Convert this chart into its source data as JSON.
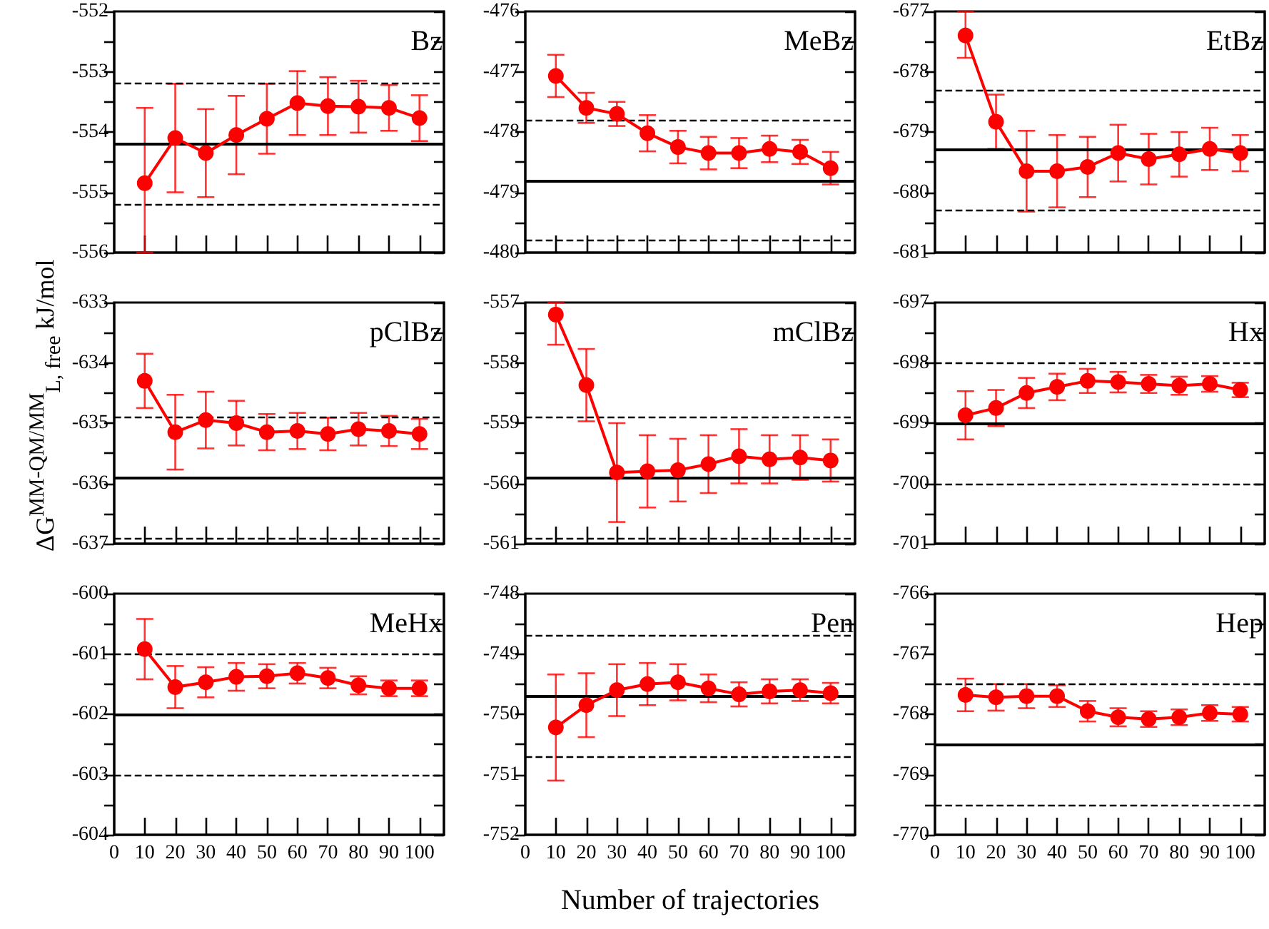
{
  "chart_data": [
    {
      "type": "line",
      "title": "Bz",
      "x": [
        10,
        20,
        30,
        40,
        50,
        60,
        70,
        80,
        90,
        100
      ],
      "xlim": [
        0,
        108
      ],
      "xticks": [
        0,
        10,
        20,
        30,
        40,
        50,
        60,
        70,
        80,
        90,
        100
      ],
      "ylim": [
        -556,
        -552
      ],
      "yticks": [
        -556,
        {
          "value": -555.5,
          "label": null
        },
        -555,
        {
          "value": -554.5,
          "label": null
        },
        -554,
        {
          "value": -553.5,
          "label": null
        },
        -553,
        {
          "value": -552.5,
          "label": null
        },
        -552
      ],
      "tick_labels": "y",
      "marker": "circle",
      "series": [
        {
          "color": "#ff0000",
          "values": [
            -554.85,
            -554.1,
            -554.35,
            -554.05,
            -553.78,
            -553.52,
            -553.57,
            -553.58,
            -553.6,
            -553.77
          ],
          "errors": [
            [
              -556,
              -553.6
            ],
            0.9,
            0.73,
            0.65,
            0.58,
            0.53,
            0.48,
            0.43,
            0.38,
            0.38
          ]
        }
      ],
      "ref_lines": [
        {
          "axis": "y",
          "value": -554.2,
          "line_style": "solid"
        },
        {
          "axis": "y",
          "value": -553.2,
          "line_style": "dashed"
        },
        {
          "axis": "y",
          "value": -555.2,
          "line_style": "dashed"
        }
      ]
    },
    {
      "type": "line",
      "title": "MeBz",
      "x": [
        10,
        20,
        30,
        40,
        50,
        60,
        70,
        80,
        90,
        100
      ],
      "xlim": [
        0,
        108
      ],
      "xticks": [
        0,
        10,
        20,
        30,
        40,
        50,
        60,
        70,
        80,
        90,
        100
      ],
      "ylim": [
        -480,
        -476
      ],
      "yticks": [
        -480,
        {
          "value": -479.5,
          "label": null
        },
        -479,
        {
          "value": -478.5,
          "label": null
        },
        -478,
        {
          "value": -477.5,
          "label": null
        },
        -477,
        {
          "value": -476.5,
          "label": null
        },
        -476
      ],
      "tick_labels": "y",
      "marker": "circle",
      "series": [
        {
          "color": "#ff0000",
          "values": [
            -477.07,
            -477.6,
            -477.7,
            -478.02,
            -478.25,
            -478.35,
            -478.35,
            -478.28,
            -478.33,
            -478.6
          ],
          "errors": [
            0.35,
            0.25,
            0.2,
            0.3,
            0.27,
            0.27,
            0.25,
            0.22,
            0.2,
            0.27
          ]
        }
      ],
      "ref_lines": [
        {
          "axis": "y",
          "value": -478.8,
          "line_style": "solid"
        },
        {
          "axis": "y",
          "value": -477.8,
          "line_style": "dashed"
        },
        {
          "axis": "y",
          "value": -479.8,
          "line_style": "dashed"
        }
      ]
    },
    {
      "type": "line",
      "title": "EtBz",
      "x": [
        10,
        20,
        30,
        40,
        50,
        60,
        70,
        80,
        90,
        100
      ],
      "xlim": [
        0,
        108
      ],
      "xticks": [
        0,
        10,
        20,
        30,
        40,
        50,
        60,
        70,
        80,
        90,
        100
      ],
      "ylim": [
        -681,
        -677
      ],
      "yticks": [
        -681,
        {
          "value": -680.5,
          "label": null
        },
        -680,
        {
          "value": -679.5,
          "label": null
        },
        -679,
        {
          "value": -678.5,
          "label": null
        },
        -678,
        {
          "value": -677.5,
          "label": null
        },
        -677
      ],
      "tick_labels": "y",
      "marker": "circle",
      "series": [
        {
          "color": "#ff0000",
          "values": [
            -677.4,
            -678.83,
            -679.65,
            -679.65,
            -679.58,
            -679.35,
            -679.45,
            -679.37,
            -679.28,
            -679.35
          ],
          "errors": [
            [
              -677.77,
              -677
            ],
            0.45,
            0.67,
            0.6,
            0.5,
            0.47,
            0.42,
            0.37,
            0.35,
            0.3
          ]
        }
      ],
      "ref_lines": [
        {
          "axis": "y",
          "value": -679.3,
          "line_style": "solid"
        },
        {
          "axis": "y",
          "value": -678.3,
          "line_style": "dashed"
        },
        {
          "axis": "y",
          "value": -680.3,
          "line_style": "dashed"
        }
      ]
    },
    {
      "type": "line",
      "title": "pClBz",
      "ylabel": "ΔG$^{MM-QM/MM}$$_{L, free}$ kJ/mol",
      "x": [
        10,
        20,
        30,
        40,
        50,
        60,
        70,
        80,
        90,
        100
      ],
      "xlim": [
        0,
        108
      ],
      "xticks": [
        0,
        10,
        20,
        30,
        40,
        50,
        60,
        70,
        80,
        90,
        100
      ],
      "ylim": [
        -637,
        -633
      ],
      "yticks": [
        -637,
        {
          "value": -636.5,
          "label": null
        },
        -636,
        {
          "value": -635.5,
          "label": null
        },
        -635,
        {
          "value": -634.5,
          "label": null
        },
        -634,
        {
          "value": -633.5,
          "label": null
        },
        -633
      ],
      "tick_labels": "y",
      "marker": "circle",
      "series": [
        {
          "color": "#ff0000",
          "values": [
            -634.3,
            -635.15,
            -634.95,
            -635.0,
            -635.15,
            -635.13,
            -635.18,
            -635.1,
            -635.13,
            -635.18
          ],
          "errors": [
            0.45,
            0.62,
            0.47,
            0.37,
            0.3,
            0.3,
            0.27,
            0.27,
            0.25,
            0.25
          ]
        }
      ],
      "ref_lines": [
        {
          "axis": "y",
          "value": -635.9,
          "line_style": "solid"
        },
        {
          "axis": "y",
          "value": -634.9,
          "line_style": "dashed"
        },
        {
          "axis": "y",
          "value": -636.9,
          "line_style": "dashed"
        }
      ]
    },
    {
      "type": "line",
      "title": "mClBz",
      "x": [
        10,
        20,
        30,
        40,
        50,
        60,
        70,
        80,
        90,
        100
      ],
      "xlim": [
        0,
        108
      ],
      "xticks": [
        0,
        10,
        20,
        30,
        40,
        50,
        60,
        70,
        80,
        90,
        100
      ],
      "ylim": [
        -561,
        -557
      ],
      "yticks": [
        -561,
        {
          "value": -560.5,
          "label": null
        },
        -560,
        {
          "value": -559.5,
          "label": null
        },
        -559,
        {
          "value": -558.5,
          "label": null
        },
        -558,
        {
          "value": -557.5,
          "label": null
        },
        -557
      ],
      "tick_labels": "y",
      "marker": "circle",
      "series": [
        {
          "color": "#ff0000",
          "values": [
            -557.2,
            -558.37,
            -559.82,
            -559.8,
            -559.78,
            -559.68,
            -559.55,
            -559.6,
            -559.57,
            -559.62
          ],
          "errors": [
            [
              -557.7,
              -557
            ],
            0.6,
            0.82,
            0.6,
            0.52,
            0.48,
            0.45,
            0.4,
            0.37,
            0.35
          ]
        }
      ],
      "ref_lines": [
        {
          "axis": "y",
          "value": -559.9,
          "line_style": "solid"
        },
        {
          "axis": "y",
          "value": -558.9,
          "line_style": "dashed"
        },
        {
          "axis": "y",
          "value": -560.9,
          "line_style": "dashed"
        }
      ]
    },
    {
      "type": "line",
      "title": "Hx",
      "x": [
        10,
        20,
        30,
        40,
        50,
        60,
        70,
        80,
        90,
        100
      ],
      "xlim": [
        0,
        108
      ],
      "xticks": [
        0,
        10,
        20,
        30,
        40,
        50,
        60,
        70,
        80,
        90,
        100
      ],
      "ylim": [
        -701,
        -697
      ],
      "yticks": [
        -701,
        {
          "value": -700.5,
          "label": null
        },
        -700,
        {
          "value": -699.5,
          "label": null
        },
        -699,
        {
          "value": -698.5,
          "label": null
        },
        -698,
        {
          "value": -697.5,
          "label": null
        },
        -697
      ],
      "tick_labels": "y",
      "marker": "circle",
      "series": [
        {
          "color": "#ff0000",
          "values": [
            -698.87,
            -698.75,
            -698.5,
            -698.4,
            -698.3,
            -698.32,
            -698.35,
            -698.38,
            -698.35,
            -698.45
          ],
          "errors": [
            0.4,
            0.3,
            0.25,
            0.22,
            0.2,
            0.17,
            0.15,
            0.15,
            0.13,
            0.12
          ]
        }
      ],
      "ref_lines": [
        {
          "axis": "y",
          "value": -699,
          "line_style": "solid"
        },
        {
          "axis": "y",
          "value": -698,
          "line_style": "dashed"
        },
        {
          "axis": "y",
          "value": -700,
          "line_style": "dashed"
        }
      ]
    },
    {
      "type": "line",
      "title": "MeHx",
      "x": [
        10,
        20,
        30,
        40,
        50,
        60,
        70,
        80,
        90,
        100
      ],
      "xlim": [
        0,
        108
      ],
      "xticks": [
        0,
        10,
        20,
        30,
        40,
        50,
        60,
        70,
        80,
        90,
        100
      ],
      "ylim": [
        -604,
        -600
      ],
      "yticks": [
        -604,
        {
          "value": -603.5,
          "label": null
        },
        -603,
        {
          "value": -602.5,
          "label": null
        },
        -602,
        {
          "value": -601.5,
          "label": null
        },
        -601,
        {
          "value": -600.5,
          "label": null
        },
        -600
      ],
      "marker": "circle",
      "series": [
        {
          "color": "#ff0000",
          "values": [
            -600.92,
            -601.55,
            -601.47,
            -601.38,
            -601.37,
            -601.32,
            -601.4,
            -601.52,
            -601.57,
            -601.57
          ],
          "errors": [
            0.5,
            0.35,
            0.25,
            0.23,
            0.2,
            0.17,
            0.17,
            0.15,
            0.13,
            0.13
          ]
        }
      ],
      "ref_lines": [
        {
          "axis": "y",
          "value": -602,
          "line_style": "solid"
        },
        {
          "axis": "y",
          "value": -601,
          "line_style": "dashed"
        },
        {
          "axis": "y",
          "value": -603,
          "line_style": "dashed"
        }
      ]
    },
    {
      "type": "line",
      "title": "Pen",
      "xlabel": "Number of trajectories",
      "x": [
        10,
        20,
        30,
        40,
        50,
        60,
        70,
        80,
        90,
        100
      ],
      "xlim": [
        0,
        108
      ],
      "xticks": [
        0,
        10,
        20,
        30,
        40,
        50,
        60,
        70,
        80,
        90,
        100
      ],
      "ylim": [
        -752,
        -748
      ],
      "yticks": [
        -752,
        {
          "value": -751.5,
          "label": null
        },
        -751,
        {
          "value": -750.5,
          "label": null
        },
        -750,
        {
          "value": -749.5,
          "label": null
        },
        -749,
        {
          "value": -748.5,
          "label": null
        },
        -748
      ],
      "marker": "circle",
      "series": [
        {
          "color": "#ff0000",
          "values": [
            -750.22,
            -749.85,
            -749.6,
            -749.5,
            -749.47,
            -749.57,
            -749.67,
            -749.62,
            -749.6,
            -749.65
          ],
          "errors": [
            0.88,
            0.53,
            0.43,
            0.35,
            0.3,
            0.23,
            0.2,
            0.2,
            0.18,
            0.17
          ]
        }
      ],
      "ref_lines": [
        {
          "axis": "y",
          "value": -749.7,
          "line_style": "solid"
        },
        {
          "axis": "y",
          "value": -748.7,
          "line_style": "dashed"
        },
        {
          "axis": "y",
          "value": -750.7,
          "line_style": "dashed"
        }
      ]
    },
    {
      "type": "line",
      "title": "Hep",
      "x": [
        10,
        20,
        30,
        40,
        50,
        60,
        70,
        80,
        90,
        100
      ],
      "xlim": [
        0,
        108
      ],
      "xticks": [
        0,
        10,
        20,
        30,
        40,
        50,
        60,
        70,
        80,
        90,
        100
      ],
      "ylim": [
        -770,
        -766
      ],
      "yticks": [
        -770,
        {
          "value": -769.5,
          "label": null
        },
        -769,
        {
          "value": -768.5,
          "label": null
        },
        -768,
        {
          "value": -767.5,
          "label": null
        },
        -767,
        {
          "value": -766.5,
          "label": null
        },
        -766
      ],
      "marker": "circle",
      "series": [
        {
          "color": "#ff0000",
          "values": [
            -767.68,
            -767.72,
            -767.7,
            -767.7,
            -767.95,
            -768.05,
            -768.08,
            -768.05,
            -767.98,
            -768.0
          ],
          "errors": [
            0.27,
            0.22,
            0.2,
            0.18,
            0.17,
            0.15,
            0.13,
            0.13,
            0.13,
            0.12
          ]
        }
      ],
      "ref_lines": [
        {
          "axis": "y",
          "value": -768.5,
          "line_style": "solid"
        },
        {
          "axis": "y",
          "value": -767.5,
          "line_style": "dashed"
        },
        {
          "axis": "y",
          "value": -769.5,
          "line_style": "dashed"
        }
      ]
    }
  ]
}
